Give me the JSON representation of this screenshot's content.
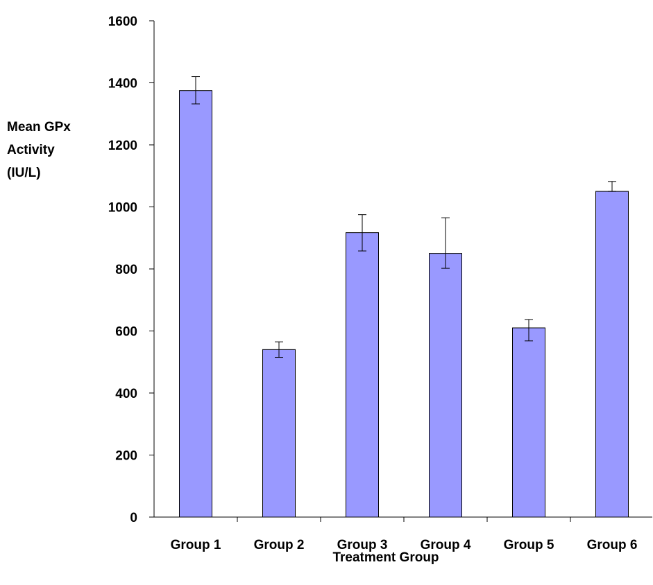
{
  "chart_data": {
    "type": "bar",
    "xlabel": "Treatment Group",
    "ylabel_lines": [
      "Mean GPx",
      "Activity",
      "(IU/L)"
    ],
    "categories": [
      "Group 1",
      "Group 2",
      "Group 3",
      "Group 4",
      "Group 5",
      "Group 6"
    ],
    "values": [
      1375,
      540,
      917,
      850,
      610,
      1050
    ],
    "error_upper": [
      1420,
      565,
      975,
      965,
      637,
      1082
    ],
    "error_lower": [
      1332,
      515,
      858,
      802,
      568,
      1050
    ],
    "ylim": [
      0,
      1600
    ],
    "yticks": [
      0,
      200,
      400,
      600,
      800,
      1000,
      1200,
      1400,
      1600
    ],
    "bar_color": "#9999ff",
    "grid": false,
    "legend": "none"
  }
}
